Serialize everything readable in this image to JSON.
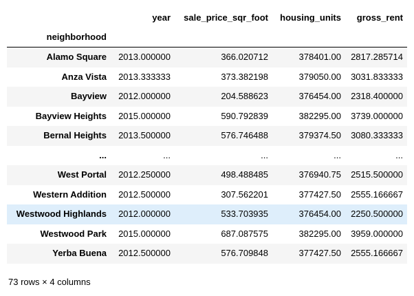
{
  "table": {
    "columns": [
      "year",
      "sale_price_sqr_foot",
      "housing_units",
      "gross_rent"
    ],
    "index_name": "neighborhood",
    "rows": [
      {
        "index": "Alamo Square",
        "cells": [
          "2013.000000",
          "366.020712",
          "378401.00",
          "2817.285714"
        ],
        "hover": false
      },
      {
        "index": "Anza Vista",
        "cells": [
          "2013.333333",
          "373.382198",
          "379050.00",
          "3031.833333"
        ],
        "hover": false
      },
      {
        "index": "Bayview",
        "cells": [
          "2012.000000",
          "204.588623",
          "376454.00",
          "2318.400000"
        ],
        "hover": false
      },
      {
        "index": "Bayview Heights",
        "cells": [
          "2015.000000",
          "590.792839",
          "382295.00",
          "3739.000000"
        ],
        "hover": false
      },
      {
        "index": "Bernal Heights",
        "cells": [
          "2013.500000",
          "576.746488",
          "379374.50",
          "3080.333333"
        ],
        "hover": false
      },
      {
        "index": "...",
        "cells": [
          "...",
          "...",
          "...",
          "..."
        ],
        "hover": false
      },
      {
        "index": "West Portal",
        "cells": [
          "2012.250000",
          "498.488485",
          "376940.75",
          "2515.500000"
        ],
        "hover": false
      },
      {
        "index": "Western Addition",
        "cells": [
          "2012.500000",
          "307.562201",
          "377427.50",
          "2555.166667"
        ],
        "hover": false
      },
      {
        "index": "Westwood Highlands",
        "cells": [
          "2012.000000",
          "533.703935",
          "376454.00",
          "2250.500000"
        ],
        "hover": true
      },
      {
        "index": "Westwood Park",
        "cells": [
          "2015.000000",
          "687.087575",
          "382295.00",
          "3959.000000"
        ],
        "hover": false
      },
      {
        "index": "Yerba Buena",
        "cells": [
          "2012.500000",
          "576.709848",
          "377427.50",
          "2555.166667"
        ],
        "hover": false
      }
    ]
  },
  "shape_note": "73 rows × 4 columns",
  "colors": {
    "row_stripe": "#f5f5f5",
    "row_hover": "#deeefb",
    "header_rule": "#000000"
  }
}
